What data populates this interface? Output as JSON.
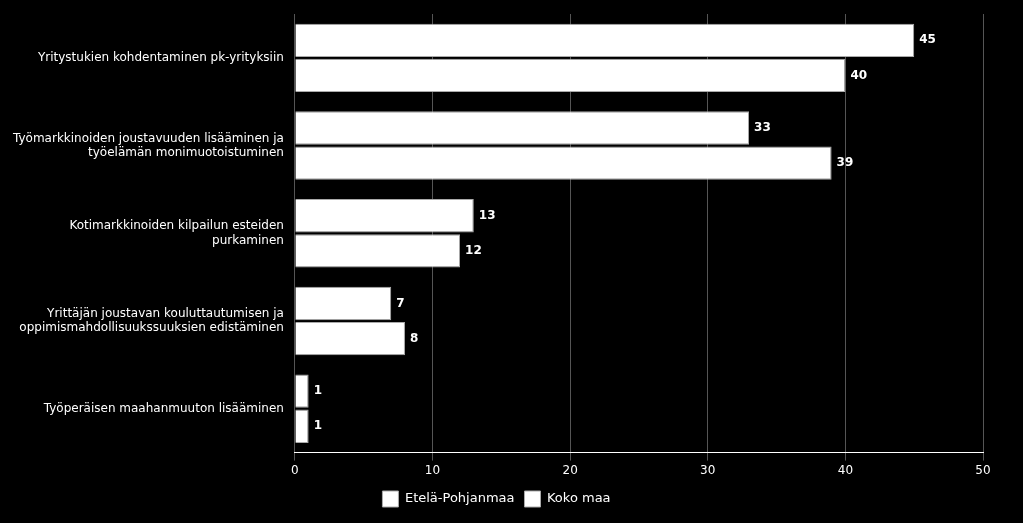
{
  "chart_data": {
    "type": "bar",
    "orientation": "horizontal",
    "categories": [
      "Yritystukien kohdentaminen pk-yrityksiin",
      "Työmarkkinoiden joustavuuden lisääminen ja\ntyöelämän monimuotoistuminen",
      "Kotimarkkinoiden kilpailun esteiden\npurkaminen",
      "Yrittäjän joustavan kouluttautumisen ja\noppimismahdollisuukssuuksien edistäminen",
      "Työperäisen maahanmuuton lisääminen"
    ],
    "series": [
      {
        "name": "Etelä-Pohjanmaa",
        "color": "#ffffff",
        "values": [
          40,
          39,
          12,
          8,
          1
        ]
      },
      {
        "name": "Koko maa",
        "color": "#ffffff",
        "values": [
          45,
          33,
          13,
          7,
          1
        ]
      }
    ],
    "xlim": [
      0,
      50
    ],
    "xticks": [
      0,
      10,
      20,
      30,
      40,
      50
    ],
    "grid": true,
    "legend": "bottom",
    "data_labels": true
  }
}
